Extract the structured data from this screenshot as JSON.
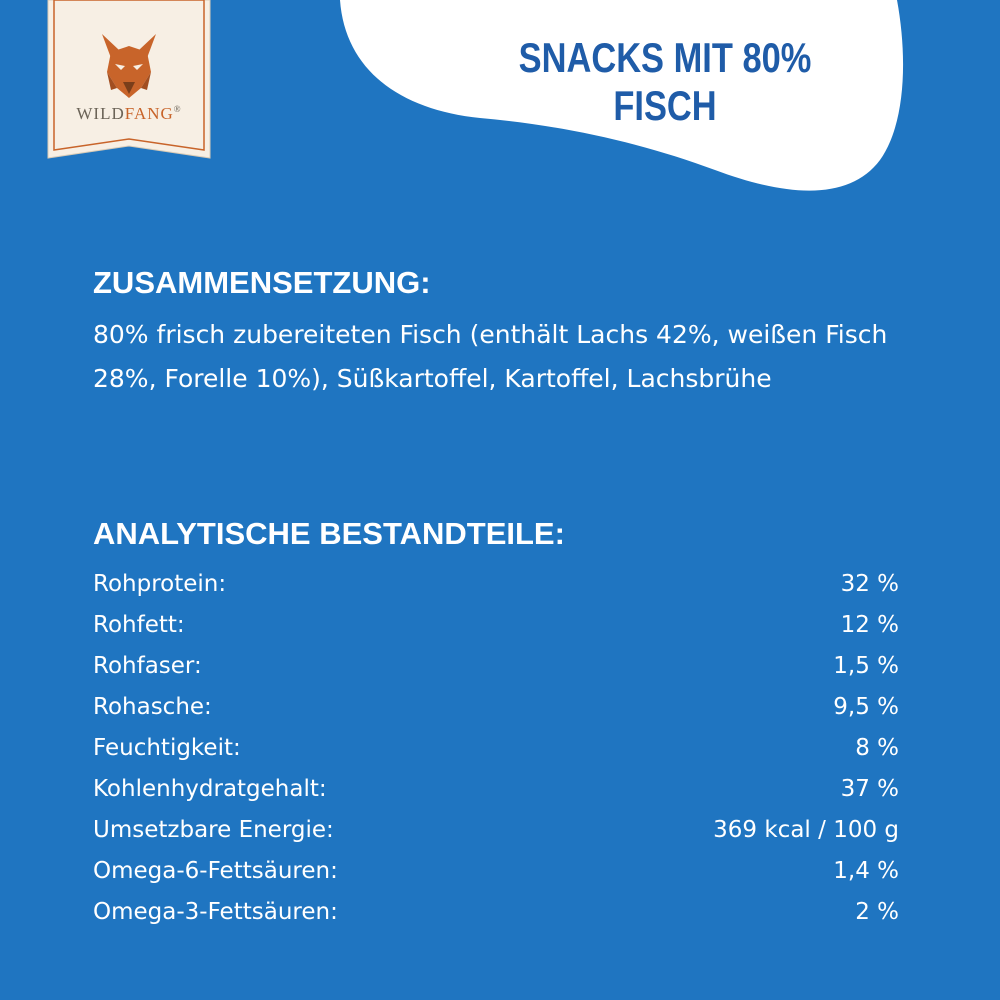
{
  "header": {
    "headline": "SNACKS MIT 80% FISCH"
  },
  "brand": {
    "name_part1": "WILD",
    "name_part2": "FANG",
    "trademark": "®",
    "logo_icon": "wolf-head-icon",
    "colors": {
      "accent": "#c8642a",
      "badge": "#f7efe4"
    }
  },
  "composition": {
    "title": "ZUSAMMENSETZUNG:",
    "text": "80% frisch zubereiteten Fisch (enthält Lachs 42%, weißen Fisch 28%, Forelle 10%), Süßkartoffel, Kartoffel, Lachsbrühe"
  },
  "analysis": {
    "title": "ANALYTISCHE BESTANDTEILE:",
    "rows": [
      {
        "label": "Rohprotein:",
        "value": "32 %"
      },
      {
        "label": "Rohfett:",
        "value": "12 %"
      },
      {
        "label": "Rohfaser:",
        "value": "1,5 %"
      },
      {
        "label": "Rohasche:",
        "value": "9,5 %"
      },
      {
        "label": "Feuchtigkeit:",
        "value": "8 %"
      },
      {
        "label": "Kohlenhydratgehalt:",
        "value": "37 %"
      },
      {
        "label": "Umsetzbare Energie:",
        "value": "369 kcal / 100 g"
      },
      {
        "label": "Omega-6-Fettsäuren:",
        "value": "1,4 %"
      },
      {
        "label": "Omega-3-Fettsäuren:",
        "value": "2 %"
      }
    ]
  },
  "colors": {
    "background": "#1f75c1",
    "blob": "#ffffff",
    "headline": "#1f5ca8"
  }
}
